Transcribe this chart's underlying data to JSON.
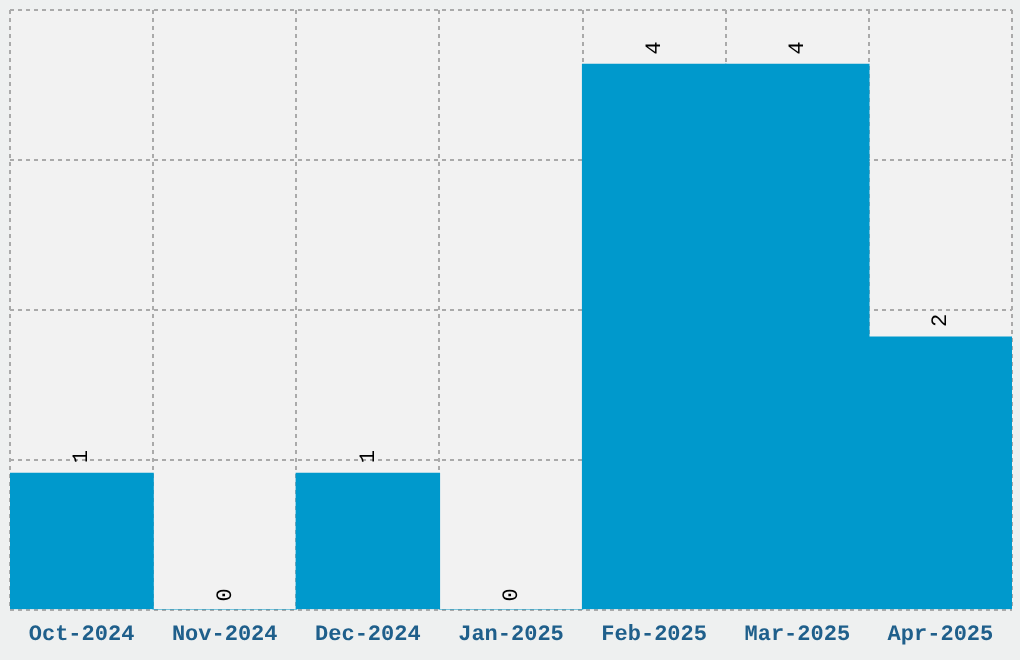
{
  "chart_data": {
    "type": "bar",
    "categories": [
      "Oct-2024",
      "Nov-2024",
      "Dec-2024",
      "Jan-2025",
      "Feb-2025",
      "Mar-2025",
      "Apr-2025"
    ],
    "values": [
      1,
      0,
      1,
      0,
      4,
      4,
      2
    ],
    "color": "#0099cc",
    "data_labels": true,
    "grid": true,
    "tick_labels": "x",
    "ylim": [
      0,
      4.4
    ],
    "yticks": [
      {
        "value": 0,
        "label": null
      },
      {
        "value": 1.1,
        "label": null
      },
      {
        "value": 2.2,
        "label": null
      },
      {
        "value": 3.3,
        "label": null
      },
      {
        "value": 4.4,
        "label": null
      }
    ]
  }
}
